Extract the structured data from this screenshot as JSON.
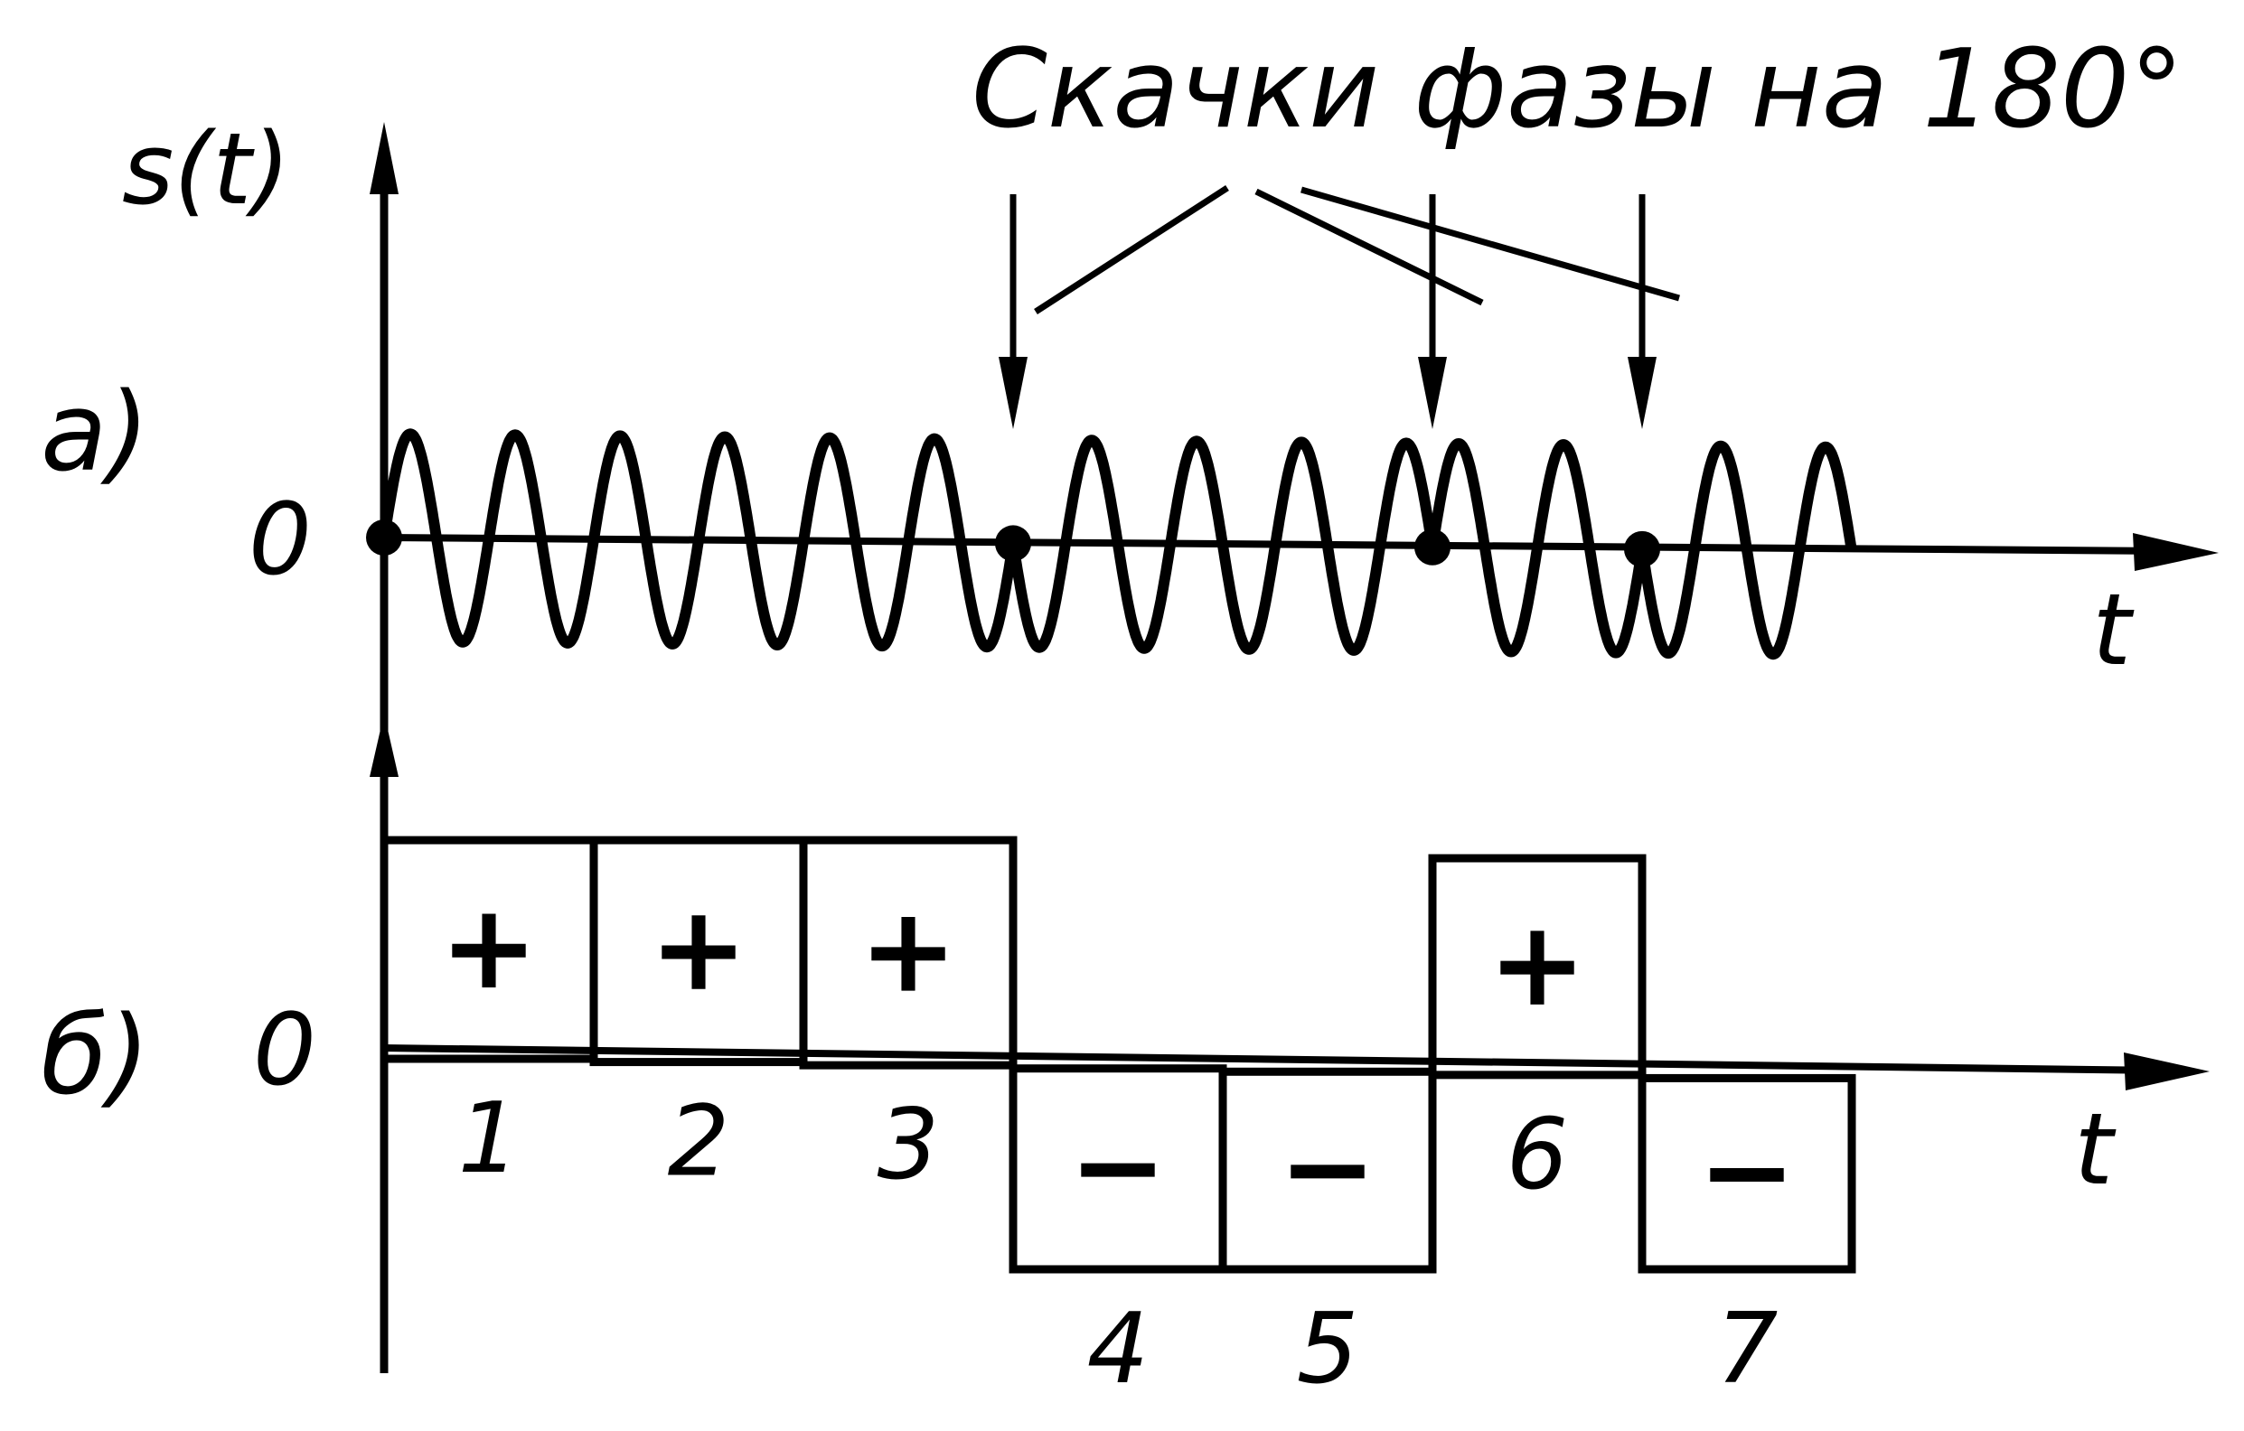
{
  "annotation": {
    "title": "Скачки фазы на 180°"
  },
  "panel_a": {
    "label": "a)",
    "y_axis_label": "s(t)",
    "x_axis_label": "t",
    "zero_label": "0",
    "phase_jump_after_symbols": [
      3,
      5,
      6
    ],
    "periods_per_symbol": 2
  },
  "panel_b": {
    "label": "б)",
    "zero_label": "0",
    "x_axis_label": "t",
    "symbols": [
      {
        "index": "1",
        "sign": "+",
        "value": 1
      },
      {
        "index": "2",
        "sign": "+",
        "value": 1
      },
      {
        "index": "3",
        "sign": "+",
        "value": 1
      },
      {
        "index": "4",
        "sign": "−",
        "value": -1
      },
      {
        "index": "5",
        "sign": "−",
        "value": -1
      },
      {
        "index": "6",
        "sign": "+",
        "value": 1
      },
      {
        "index": "7",
        "sign": "−",
        "value": -1
      }
    ]
  },
  "colors": {
    "ink": "#000000",
    "background": "#ffffff"
  }
}
